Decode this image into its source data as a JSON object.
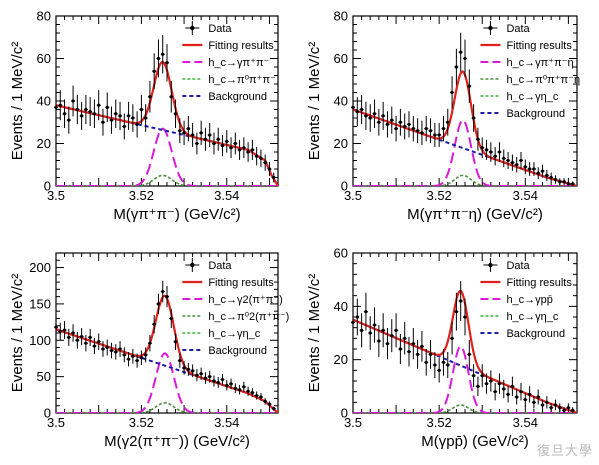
{
  "watermark": "復旦大學",
  "chart_data": [
    {
      "type": "line",
      "panel": "top-left",
      "xlabel": "M(γπ⁺π⁻) (GeV/c²)",
      "ylabel": "Events / 1 MeV/c²",
      "xlim": [
        3.5,
        3.552
      ],
      "ylim": [
        0,
        80
      ],
      "xticks": [
        3.5,
        3.52,
        3.54
      ],
      "yticks": [
        0,
        20,
        40,
        60,
        80
      ],
      "legend": [
        "Data",
        "Fitting results",
        "h_c→γπ⁺π⁻",
        "h_c→π⁰π⁺π⁻",
        "Background"
      ],
      "peak": 3.525,
      "sigma": 0.0021,
      "signal_amp": 27,
      "second_amp": 5,
      "background": [
        [
          3.5,
          38
        ],
        [
          3.545,
          17
        ],
        [
          3.549,
          12
        ],
        [
          3.5505,
          5
        ],
        [
          3.552,
          0
        ]
      ],
      "data": [
        [
          3.5,
          37
        ],
        [
          3.501,
          38
        ],
        [
          3.502,
          34
        ],
        [
          3.503,
          31
        ],
        [
          3.504,
          40
        ],
        [
          3.505,
          36
        ],
        [
          3.506,
          33
        ],
        [
          3.507,
          36
        ],
        [
          3.508,
          35
        ],
        [
          3.509,
          34
        ],
        [
          3.51,
          38
        ],
        [
          3.511,
          30
        ],
        [
          3.512,
          37
        ],
        [
          3.513,
          31
        ],
        [
          3.514,
          34
        ],
        [
          3.515,
          33
        ],
        [
          3.516,
          28
        ],
        [
          3.517,
          33
        ],
        [
          3.518,
          32
        ],
        [
          3.519,
          29
        ],
        [
          3.52,
          36
        ],
        [
          3.521,
          32
        ],
        [
          3.522,
          42
        ],
        [
          3.523,
          54
        ],
        [
          3.524,
          60
        ],
        [
          3.525,
          62
        ],
        [
          3.526,
          58
        ],
        [
          3.527,
          42
        ],
        [
          3.528,
          34
        ],
        [
          3.529,
          26
        ],
        [
          3.53,
          25
        ],
        [
          3.531,
          27
        ],
        [
          3.532,
          24
        ],
        [
          3.533,
          20
        ],
        [
          3.534,
          25
        ],
        [
          3.535,
          22
        ],
        [
          3.536,
          24
        ],
        [
          3.537,
          20
        ],
        [
          3.538,
          22
        ],
        [
          3.539,
          19
        ],
        [
          3.54,
          21
        ],
        [
          3.541,
          18
        ],
        [
          3.542,
          20
        ],
        [
          3.543,
          17
        ],
        [
          3.544,
          18
        ],
        [
          3.545,
          16
        ],
        [
          3.546,
          17
        ],
        [
          3.547,
          14
        ],
        [
          3.548,
          13
        ],
        [
          3.549,
          11
        ],
        [
          3.55,
          8
        ],
        [
          3.551,
          4
        ]
      ]
    },
    {
      "type": "line",
      "panel": "top-right",
      "xlabel": "M(γπ⁺π⁻η) (GeV/c²)",
      "ylabel": "Events / 1 MeV/c²",
      "xlim": [
        3.5,
        3.552
      ],
      "ylim": [
        0,
        80
      ],
      "xticks": [
        3.5,
        3.52,
        3.54
      ],
      "yticks": [
        0,
        20,
        40,
        60,
        80
      ],
      "legend": [
        "Data",
        "Fitting results",
        "h_c→γπ⁺π⁻η",
        "h_c→π⁰π⁺π⁻η",
        "h_c→γη_c",
        "Background"
      ],
      "peak": 3.5255,
      "sigma": 0.0019,
      "signal_amp": 31,
      "second_amp": 5,
      "background": [
        [
          3.5,
          36
        ],
        [
          3.545,
          4
        ],
        [
          3.552,
          0
        ]
      ],
      "data": [
        [
          3.5,
          37
        ],
        [
          3.501,
          35
        ],
        [
          3.502,
          36
        ],
        [
          3.503,
          33
        ],
        [
          3.504,
          32
        ],
        [
          3.505,
          34
        ],
        [
          3.506,
          30
        ],
        [
          3.507,
          33
        ],
        [
          3.508,
          29
        ],
        [
          3.509,
          31
        ],
        [
          3.51,
          27
        ],
        [
          3.511,
          30
        ],
        [
          3.512,
          28
        ],
        [
          3.513,
          29
        ],
        [
          3.514,
          27
        ],
        [
          3.515,
          26
        ],
        [
          3.516,
          25
        ],
        [
          3.517,
          27
        ],
        [
          3.518,
          26
        ],
        [
          3.519,
          24
        ],
        [
          3.52,
          24
        ],
        [
          3.521,
          27
        ],
        [
          3.522,
          30
        ],
        [
          3.523,
          44
        ],
        [
          3.524,
          56
        ],
        [
          3.525,
          63
        ],
        [
          3.526,
          60
        ],
        [
          3.527,
          47
        ],
        [
          3.528,
          32
        ],
        [
          3.529,
          22
        ],
        [
          3.53,
          18
        ],
        [
          3.531,
          17
        ],
        [
          3.532,
          16
        ],
        [
          3.533,
          14
        ],
        [
          3.534,
          16
        ],
        [
          3.535,
          13
        ],
        [
          3.536,
          12
        ],
        [
          3.537,
          11
        ],
        [
          3.538,
          10
        ],
        [
          3.539,
          12
        ],
        [
          3.54,
          9
        ],
        [
          3.541,
          8
        ],
        [
          3.542,
          8
        ],
        [
          3.543,
          6
        ],
        [
          3.544,
          7
        ],
        [
          3.545,
          5
        ],
        [
          3.546,
          4
        ],
        [
          3.547,
          3
        ],
        [
          3.548,
          2
        ],
        [
          3.549,
          2
        ],
        [
          3.55,
          1
        ],
        [
          3.551,
          1
        ]
      ]
    },
    {
      "type": "line",
      "panel": "bottom-left",
      "xlabel": "M(γ2(π⁺π⁻)) (GeV/c²)",
      "ylabel": "Events / 1 MeV/c²",
      "xlim": [
        3.5,
        3.552
      ],
      "ylim": [
        0,
        220
      ],
      "xticks": [
        3.5,
        3.52,
        3.54
      ],
      "yticks": [
        0,
        50,
        100,
        150,
        200
      ],
      "legend": [
        "Data",
        "Fitting results",
        "h_c→γ2(π⁺π⁻)",
        "h_c→π⁰2(π⁺π⁻)",
        "h_c→γη_c",
        "Background"
      ],
      "peak": 3.5255,
      "sigma": 0.0021,
      "signal_amp": 82,
      "second_amp": 14,
      "background": [
        [
          3.5,
          115
        ],
        [
          3.545,
          27
        ],
        [
          3.549,
          16
        ],
        [
          3.5505,
          8
        ],
        [
          3.552,
          0
        ]
      ],
      "data": [
        [
          3.5,
          118
        ],
        [
          3.501,
          112
        ],
        [
          3.502,
          114
        ],
        [
          3.503,
          104
        ],
        [
          3.504,
          110
        ],
        [
          3.505,
          100
        ],
        [
          3.506,
          105
        ],
        [
          3.507,
          96
        ],
        [
          3.508,
          104
        ],
        [
          3.509,
          92
        ],
        [
          3.51,
          98
        ],
        [
          3.511,
          88
        ],
        [
          3.512,
          90
        ],
        [
          3.513,
          86
        ],
        [
          3.514,
          84
        ],
        [
          3.515,
          88
        ],
        [
          3.516,
          80
        ],
        [
          3.517,
          74
        ],
        [
          3.518,
          78
        ],
        [
          3.519,
          72
        ],
        [
          3.52,
          76
        ],
        [
          3.521,
          80
        ],
        [
          3.522,
          96
        ],
        [
          3.523,
          122
        ],
        [
          3.524,
          150
        ],
        [
          3.525,
          167
        ],
        [
          3.526,
          160
        ],
        [
          3.527,
          130
        ],
        [
          3.528,
          98
        ],
        [
          3.529,
          72
        ],
        [
          3.53,
          62
        ],
        [
          3.531,
          60
        ],
        [
          3.532,
          58
        ],
        [
          3.533,
          52
        ],
        [
          3.534,
          54
        ],
        [
          3.535,
          48
        ],
        [
          3.536,
          50
        ],
        [
          3.537,
          44
        ],
        [
          3.538,
          42
        ],
        [
          3.539,
          46
        ],
        [
          3.54,
          38
        ],
        [
          3.541,
          40
        ],
        [
          3.542,
          34
        ],
        [
          3.543,
          32
        ],
        [
          3.544,
          36
        ],
        [
          3.545,
          30
        ],
        [
          3.546,
          28
        ],
        [
          3.547,
          24
        ],
        [
          3.548,
          22
        ],
        [
          3.549,
          16
        ],
        [
          3.55,
          12
        ],
        [
          3.551,
          6
        ]
      ]
    },
    {
      "type": "line",
      "panel": "bottom-right",
      "xlabel": "M(γpp̄) (GeV/c²)",
      "ylabel": "Events / 1 MeV/c²",
      "xlim": [
        3.5,
        3.552
      ],
      "ylim": [
        0,
        60
      ],
      "xticks": [
        3.5,
        3.52,
        3.54
      ],
      "yticks": [
        0,
        20,
        40,
        60
      ],
      "legend": [
        "Data",
        "Fitting results",
        "h_c→γpp̄",
        "h_c→γη_c",
        "Background"
      ],
      "peak": 3.525,
      "sigma": 0.0018,
      "signal_amp": 25,
      "second_amp": 3,
      "background": [
        [
          3.5,
          35
        ],
        [
          3.545,
          4
        ],
        [
          3.552,
          0
        ]
      ],
      "data": [
        [
          3.5,
          34
        ],
        [
          3.501,
          36
        ],
        [
          3.502,
          31
        ],
        [
          3.503,
          38
        ],
        [
          3.504,
          30
        ],
        [
          3.505,
          33
        ],
        [
          3.506,
          27
        ],
        [
          3.507,
          31
        ],
        [
          3.508,
          26
        ],
        [
          3.509,
          29
        ],
        [
          3.51,
          31
        ],
        [
          3.511,
          24
        ],
        [
          3.512,
          28
        ],
        [
          3.513,
          23
        ],
        [
          3.514,
          26
        ],
        [
          3.515,
          22
        ],
        [
          3.516,
          25
        ],
        [
          3.517,
          19
        ],
        [
          3.518,
          22
        ],
        [
          3.519,
          18
        ],
        [
          3.52,
          16
        ],
        [
          3.521,
          19
        ],
        [
          3.522,
          18
        ],
        [
          3.523,
          28
        ],
        [
          3.524,
          38
        ],
        [
          3.525,
          42
        ],
        [
          3.526,
          36
        ],
        [
          3.527,
          22
        ],
        [
          3.528,
          14
        ],
        [
          3.529,
          10
        ],
        [
          3.53,
          14
        ],
        [
          3.531,
          11
        ],
        [
          3.532,
          12
        ],
        [
          3.533,
          8
        ],
        [
          3.534,
          11
        ],
        [
          3.535,
          9
        ],
        [
          3.536,
          7
        ],
        [
          3.537,
          10
        ],
        [
          3.538,
          6
        ],
        [
          3.539,
          8
        ],
        [
          3.54,
          5
        ],
        [
          3.541,
          7
        ],
        [
          3.542,
          4
        ],
        [
          3.543,
          6
        ],
        [
          3.544,
          3
        ],
        [
          3.545,
          4
        ],
        [
          3.546,
          2
        ],
        [
          3.547,
          3
        ],
        [
          3.548,
          2
        ],
        [
          3.549,
          1
        ],
        [
          3.55,
          2
        ],
        [
          3.551,
          1
        ]
      ]
    }
  ],
  "colors": {
    "data": "#000000",
    "fit": "#e0201c",
    "signal": "#d91ad9",
    "component2": "#4a8f3c",
    "component3": "#39b539",
    "background": "#1c1ca8"
  }
}
